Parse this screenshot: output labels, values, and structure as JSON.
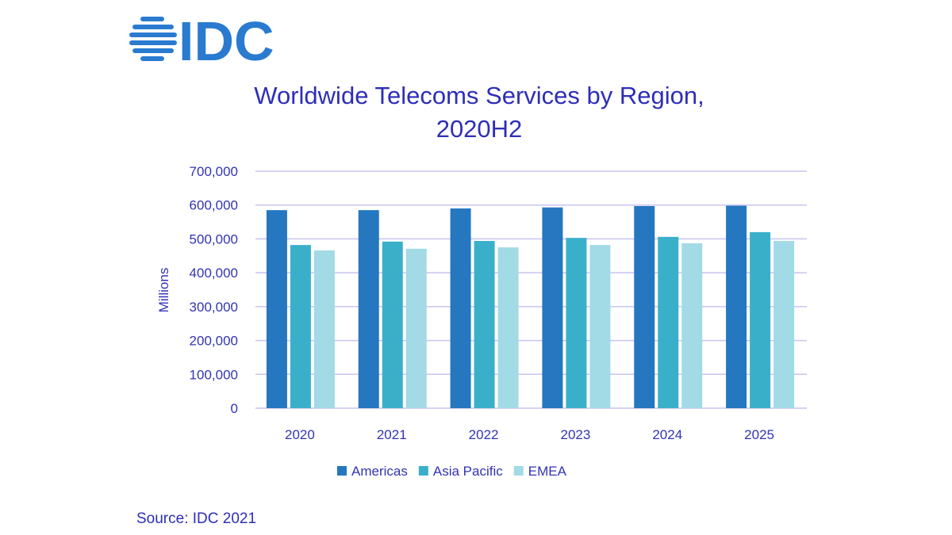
{
  "logo": {
    "text": "IDC"
  },
  "source": "Source: IDC 2021",
  "chart_data": {
    "type": "bar",
    "title": "Worldwide Telecoms Services by Region, 2020H2",
    "title_lines": [
      "Worldwide Telecoms Services by Region,",
      "2020H2"
    ],
    "xlabel": "",
    "ylabel": "Millions",
    "ylim": [
      0,
      700000
    ],
    "yticks": [
      0,
      100000,
      200000,
      300000,
      400000,
      500000,
      600000,
      700000
    ],
    "ytick_labels": [
      "0",
      "100,000",
      "200,000",
      "300,000",
      "400,000",
      "500,000",
      "600,000",
      "700,000"
    ],
    "grid": true,
    "legend_position": "bottom",
    "categories": [
      "2020",
      "2021",
      "2022",
      "2023",
      "2024",
      "2025"
    ],
    "series": [
      {
        "name": "Americas",
        "color": "#2577bf",
        "values": [
          585000,
          585000,
          590000,
          593000,
          597000,
          598000
        ]
      },
      {
        "name": "Asia Pacific",
        "color": "#3aafc9",
        "values": [
          482000,
          492000,
          494000,
          503000,
          506000,
          520000
        ]
      },
      {
        "name": "EMEA",
        "color": "#a2dae6",
        "values": [
          466000,
          471000,
          475000,
          482000,
          487000,
          494000
        ]
      }
    ]
  }
}
